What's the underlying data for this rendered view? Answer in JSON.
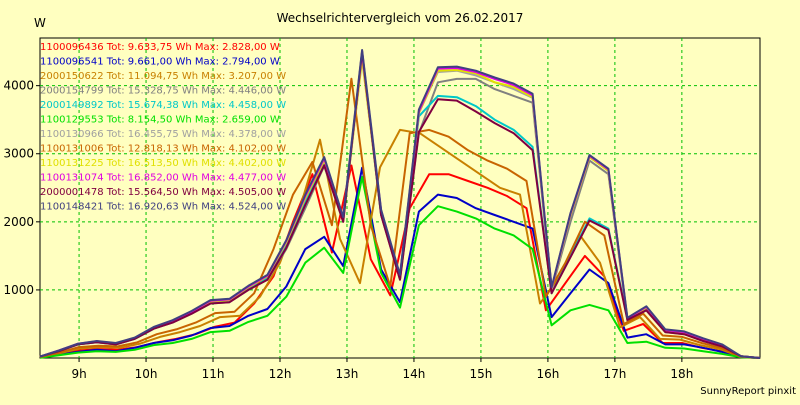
{
  "chart_data": {
    "type": "line",
    "title": "Wechselrichtervergleich vom 26.02.2017",
    "ylabel": "W",
    "footer": "SunnyReport pinxit",
    "x_ticks": [
      "9h",
      "10h",
      "11h",
      "12h",
      "13h",
      "14h",
      "15h",
      "16h",
      "17h",
      "18h"
    ],
    "y_ticks": [
      1000,
      2000,
      3000,
      4000
    ],
    "xlim": [
      "08:25",
      "19:10"
    ],
    "ylim": [
      0,
      4700
    ],
    "grid": true,
    "legend_position": "top-left",
    "series": [
      {
        "label": "1100096436 Tot: 9.633,75 Wh Max: 2.828,00 W",
        "color": "#ff0000",
        "values": [
          10,
          60,
          110,
          130,
          120,
          160,
          230,
          280,
          350,
          460,
          520,
          800,
          1200,
          2000,
          2700,
          1550,
          2828,
          1450,
          920,
          2200,
          2700,
          2700,
          2600,
          2500,
          2380,
          2200,
          700,
          1100,
          1500,
          1200,
          400,
          500,
          220,
          220,
          150,
          100,
          15,
          0
        ]
      },
      {
        "label": "1100096541 Tot: 9.661,00 Wh Max: 2.794,00 W",
        "color": "#0000c8",
        "values": [
          10,
          50,
          90,
          120,
          100,
          150,
          220,
          260,
          330,
          440,
          470,
          620,
          720,
          1050,
          1600,
          1780,
          1350,
          2794,
          1300,
          820,
          2150,
          2400,
          2350,
          2200,
          2100,
          2000,
          1900,
          600,
          950,
          1300,
          1100,
          300,
          350,
          200,
          200,
          150,
          90,
          15,
          0
        ]
      },
      {
        "label": "2000150622 Tot: 11.094,75 Wh Max: 3.207,00 W",
        "color": "#c88000",
        "values": [
          15,
          70,
          140,
          160,
          150,
          210,
          310,
          380,
          470,
          600,
          620,
          900,
          1400,
          2200,
          3207,
          1750,
          1100,
          2800,
          3350,
          3300,
          3100,
          2900,
          2700,
          2500,
          2400,
          800,
          1200,
          1800,
          1400,
          450,
          600,
          280,
          270,
          190,
          130,
          20,
          0
        ]
      },
      {
        "label": "2000154799 Tot: 15.328,75 Wh Max: 4.446,00 W",
        "color": "#808080",
        "values": [
          20,
          100,
          200,
          230,
          200,
          280,
          430,
          520,
          650,
          800,
          820,
          1000,
          1150,
          1600,
          2200,
          2820,
          2000,
          4446,
          2100,
          1150,
          3300,
          4050,
          4100,
          4100,
          3950,
          3850,
          3750,
          1000,
          2000,
          2900,
          2700,
          550,
          700,
          380,
          350,
          250,
          170,
          25,
          0
        ]
      },
      {
        "label": "2000149892 Tot: 15.674,38 Wh Max: 4.458,00 W",
        "color": "#00c8c8",
        "values": [
          20,
          100,
          200,
          230,
          200,
          280,
          430,
          530,
          660,
          820,
          840,
          1020,
          1180,
          1650,
          2300,
          2850,
          2030,
          4458,
          2100,
          1180,
          3550,
          3850,
          3830,
          3700,
          3500,
          3350,
          3100,
          950,
          1500,
          2050,
          1900,
          580,
          720,
          390,
          360,
          260,
          180,
          25,
          0
        ]
      },
      {
        "label": "1100129553 Tot: 8.154,50 Wh Max: 2.659,00 W",
        "color": "#00e000",
        "values": [
          5,
          40,
          80,
          100,
          90,
          120,
          190,
          220,
          280,
          380,
          400,
          530,
          620,
          900,
          1400,
          1620,
          1250,
          2659,
          1250,
          740,
          1950,
          2230,
          2150,
          2050,
          1900,
          1800,
          1600,
          480,
          700,
          780,
          700,
          220,
          240,
          150,
          140,
          100,
          60,
          10,
          0
        ]
      },
      {
        "label": "1100130966 Tot: 16.455,75 Wh Max: 4.378,00 W",
        "color": "#a0a0a0",
        "values": [
          20,
          105,
          205,
          240,
          210,
          290,
          440,
          540,
          670,
          830,
          850,
          1040,
          1200,
          1700,
          2350,
          2900,
          2050,
          4378,
          2150,
          1200,
          3600,
          4200,
          4220,
          4150,
          4050,
          3950,
          3820,
          1020,
          2100,
          2950,
          2750,
          570,
          740,
          400,
          370,
          270,
          180,
          25,
          0
        ]
      },
      {
        "label": "1100131006 Tot: 12.818,13 Wh Max: 4.102,00 W",
        "color": "#c86400",
        "values": [
          15,
          80,
          160,
          180,
          170,
          230,
          350,
          420,
          520,
          660,
          680,
          950,
          1600,
          2400,
          2880,
          1950,
          4102,
          1950,
          1050,
          3300,
          3350,
          3250,
          3050,
          2900,
          2780,
          2600,
          900,
          1400,
          2000,
          1800,
          500,
          650,
          330,
          310,
          220,
          150,
          20,
          0
        ]
      },
      {
        "label": "1100131225 Tot: 16.513,50 Wh Max: 4.402,00 W",
        "color": "#e0e000",
        "values": [
          20,
          105,
          205,
          240,
          210,
          290,
          440,
          540,
          670,
          830,
          850,
          1040,
          1200,
          1700,
          2350,
          2900,
          2050,
          4402,
          2150,
          1200,
          3600,
          4220,
          4230,
          4180,
          4050,
          3980,
          3830,
          1020,
          2100,
          2950,
          2750,
          570,
          740,
          400,
          370,
          270,
          180,
          25,
          0
        ]
      },
      {
        "label": "1100131074 Tot: 16.852,00 Wh Max: 4.477,00 W",
        "color": "#e000e0",
        "values": [
          20,
          110,
          210,
          245,
          215,
          295,
          450,
          550,
          680,
          840,
          860,
          1050,
          1210,
          1720,
          2380,
          2930,
          2060,
          4477,
          2170,
          1210,
          3620,
          4250,
          4260,
          4200,
          4100,
          4010,
          3860,
          1030,
          2120,
          2970,
          2770,
          580,
          750,
          410,
          380,
          280,
          190,
          25,
          0
        ]
      },
      {
        "label": "2000001478 Tot: 15.564,50 Wh Max: 4.505,00 W",
        "color": "#800040",
        "values": [
          20,
          100,
          200,
          230,
          200,
          280,
          430,
          520,
          650,
          800,
          820,
          1000,
          1150,
          1620,
          2250,
          2830,
          2000,
          4505,
          2100,
          1150,
          3320,
          3800,
          3780,
          3620,
          3450,
          3300,
          3050,
          950,
          1480,
          2020,
          1880,
          560,
          700,
          380,
          350,
          250,
          170,
          25,
          0
        ]
      },
      {
        "label": "1100148421 Tot: 16.920,63 Wh Max: 4.524,00 W",
        "color": "#404080",
        "values": [
          20,
          110,
          210,
          250,
          220,
          300,
          455,
          555,
          690,
          850,
          870,
          1060,
          1220,
          1730,
          2400,
          2950,
          2070,
          4524,
          2180,
          1220,
          3650,
          4270,
          4280,
          4220,
          4120,
          4030,
          3880,
          1040,
          2130,
          2980,
          2780,
          590,
          760,
          420,
          390,
          290,
          200,
          25,
          0
        ]
      }
    ]
  }
}
